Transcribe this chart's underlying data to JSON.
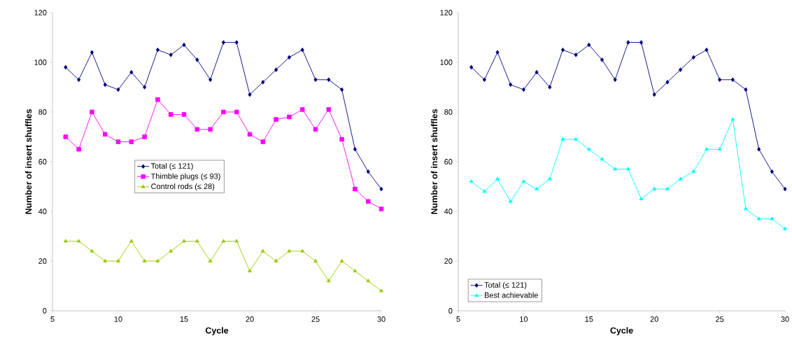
{
  "chart_data": [
    {
      "type": "line",
      "xlabel": "Cycle",
      "ylabel": "Number of insert shuffles",
      "x": [
        6,
        7,
        8,
        9,
        10,
        11,
        12,
        13,
        14,
        15,
        16,
        17,
        18,
        19,
        20,
        21,
        22,
        23,
        24,
        25,
        26,
        27,
        28,
        29,
        30
      ],
      "series": [
        {
          "name": "Total (≤ 121)",
          "color": "#000080",
          "marker": "diamond",
          "values": [
            98,
            93,
            104,
            91,
            89,
            96,
            90,
            105,
            103,
            107,
            101,
            93,
            108,
            108,
            87,
            92,
            97,
            102,
            105,
            93,
            93,
            89,
            65,
            56,
            49
          ]
        },
        {
          "name": "Thimble plugs (≤ 93)",
          "color": "#ff00ff",
          "marker": "square",
          "values": [
            70,
            65,
            80,
            71,
            68,
            68,
            70,
            85,
            79,
            79,
            73,
            73,
            80,
            80,
            71,
            68,
            77,
            78,
            81,
            73,
            81,
            69,
            49,
            44,
            41
          ]
        },
        {
          "name": "Control rods (≤ 28)",
          "color": "#99cc00",
          "marker": "triangle",
          "values": [
            28,
            28,
            24,
            20,
            20,
            28,
            20,
            20,
            24,
            28,
            28,
            20,
            28,
            28,
            16,
            24,
            20,
            24,
            24,
            20,
            12,
            20,
            16,
            12,
            8
          ]
        }
      ],
      "xlim": [
        5,
        30
      ],
      "xticks": [
        5,
        10,
        15,
        20,
        25,
        30
      ],
      "ylim": [
        0,
        120
      ],
      "yticks": [
        0,
        20,
        40,
        60,
        80,
        100,
        120
      ],
      "grid": false,
      "legend": "center",
      "line_style": "solid"
    },
    {
      "type": "line",
      "xlabel": "Cycle",
      "ylabel": "Number of insert shuffles",
      "x": [
        6,
        7,
        8,
        9,
        10,
        11,
        12,
        13,
        14,
        15,
        16,
        17,
        18,
        19,
        20,
        21,
        22,
        23,
        24,
        25,
        26,
        27,
        28,
        29,
        30
      ],
      "series": [
        {
          "name": "Total (≤ 121)",
          "color": "#000080",
          "marker": "diamond",
          "values": [
            98,
            93,
            104,
            91,
            89,
            96,
            90,
            105,
            103,
            107,
            101,
            93,
            108,
            108,
            87,
            92,
            97,
            102,
            105,
            93,
            93,
            89,
            65,
            56,
            49
          ]
        },
        {
          "name": "Best achievable",
          "color": "#00ffff",
          "marker": "triangle",
          "values": [
            52,
            48,
            53,
            44,
            52,
            49,
            53,
            69,
            69,
            65,
            61,
            57,
            57,
            45,
            49,
            49,
            53,
            56,
            65,
            65,
            77,
            41,
            37,
            37,
            33
          ]
        }
      ],
      "xlim": [
        5,
        30
      ],
      "xticks": [
        5,
        10,
        15,
        20,
        25,
        30
      ],
      "ylim": [
        0,
        120
      ],
      "yticks": [
        0,
        20,
        40,
        60,
        80,
        100,
        120
      ],
      "grid": false,
      "legend": "bottom left",
      "line_style": "solid"
    }
  ]
}
